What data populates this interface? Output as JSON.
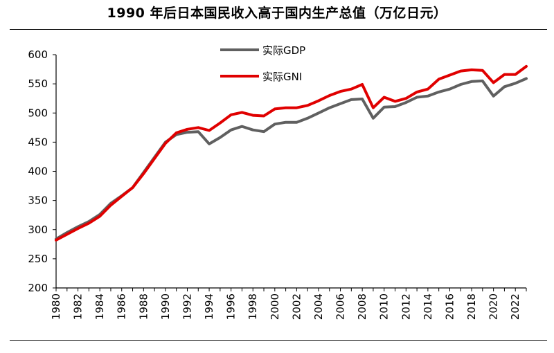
{
  "chart_data": {
    "type": "line",
    "title": "1990 年后日本国民收入高于国内生产总值（万亿日元）",
    "xlabel": "",
    "ylabel": "",
    "ylim": [
      200,
      600
    ],
    "yticks": [
      200,
      250,
      300,
      350,
      400,
      450,
      500,
      550,
      600
    ],
    "xlim": [
      1980,
      2023
    ],
    "xticks": [
      1980,
      1982,
      1984,
      1986,
      1988,
      1990,
      1992,
      1994,
      1996,
      1998,
      2000,
      2002,
      2004,
      2006,
      2008,
      2010,
      2012,
      2014,
      2016,
      2018,
      2020,
      2022
    ],
    "grid": false,
    "legend_position": "top-center",
    "x": [
      1980,
      1981,
      1982,
      1983,
      1984,
      1985,
      1986,
      1987,
      1988,
      1989,
      1990,
      1991,
      1992,
      1993,
      1994,
      1995,
      1996,
      1997,
      1998,
      1999,
      2000,
      2001,
      2002,
      2003,
      2004,
      2005,
      2006,
      2007,
      2008,
      2009,
      2010,
      2011,
      2012,
      2013,
      2014,
      2015,
      2016,
      2017,
      2018,
      2019,
      2020,
      2021,
      2022,
      2023
    ],
    "series": [
      {
        "name": "实际GDP",
        "color": "#606060",
        "values": [
          284,
          295,
          305,
          314,
          326,
          345,
          358,
          372,
          398,
          424,
          450,
          463,
          467,
          468,
          447,
          458,
          471,
          477,
          471,
          468,
          481,
          484,
          484,
          491,
          500,
          509,
          516,
          523,
          524,
          491,
          510,
          511,
          518,
          527,
          529,
          536,
          541,
          549,
          554,
          555,
          529,
          545,
          551,
          559
        ]
      },
      {
        "name": "实际GNI",
        "color": "#e00000",
        "values": [
          282,
          292,
          302,
          311,
          323,
          342,
          357,
          372,
          396,
          422,
          448,
          466,
          472,
          475,
          470,
          483,
          497,
          501,
          496,
          495,
          507,
          509,
          509,
          513,
          521,
          530,
          537,
          541,
          549,
          509,
          527,
          520,
          525,
          536,
          541,
          558,
          565,
          572,
          574,
          573,
          552,
          566,
          566,
          580
        ]
      }
    ]
  }
}
